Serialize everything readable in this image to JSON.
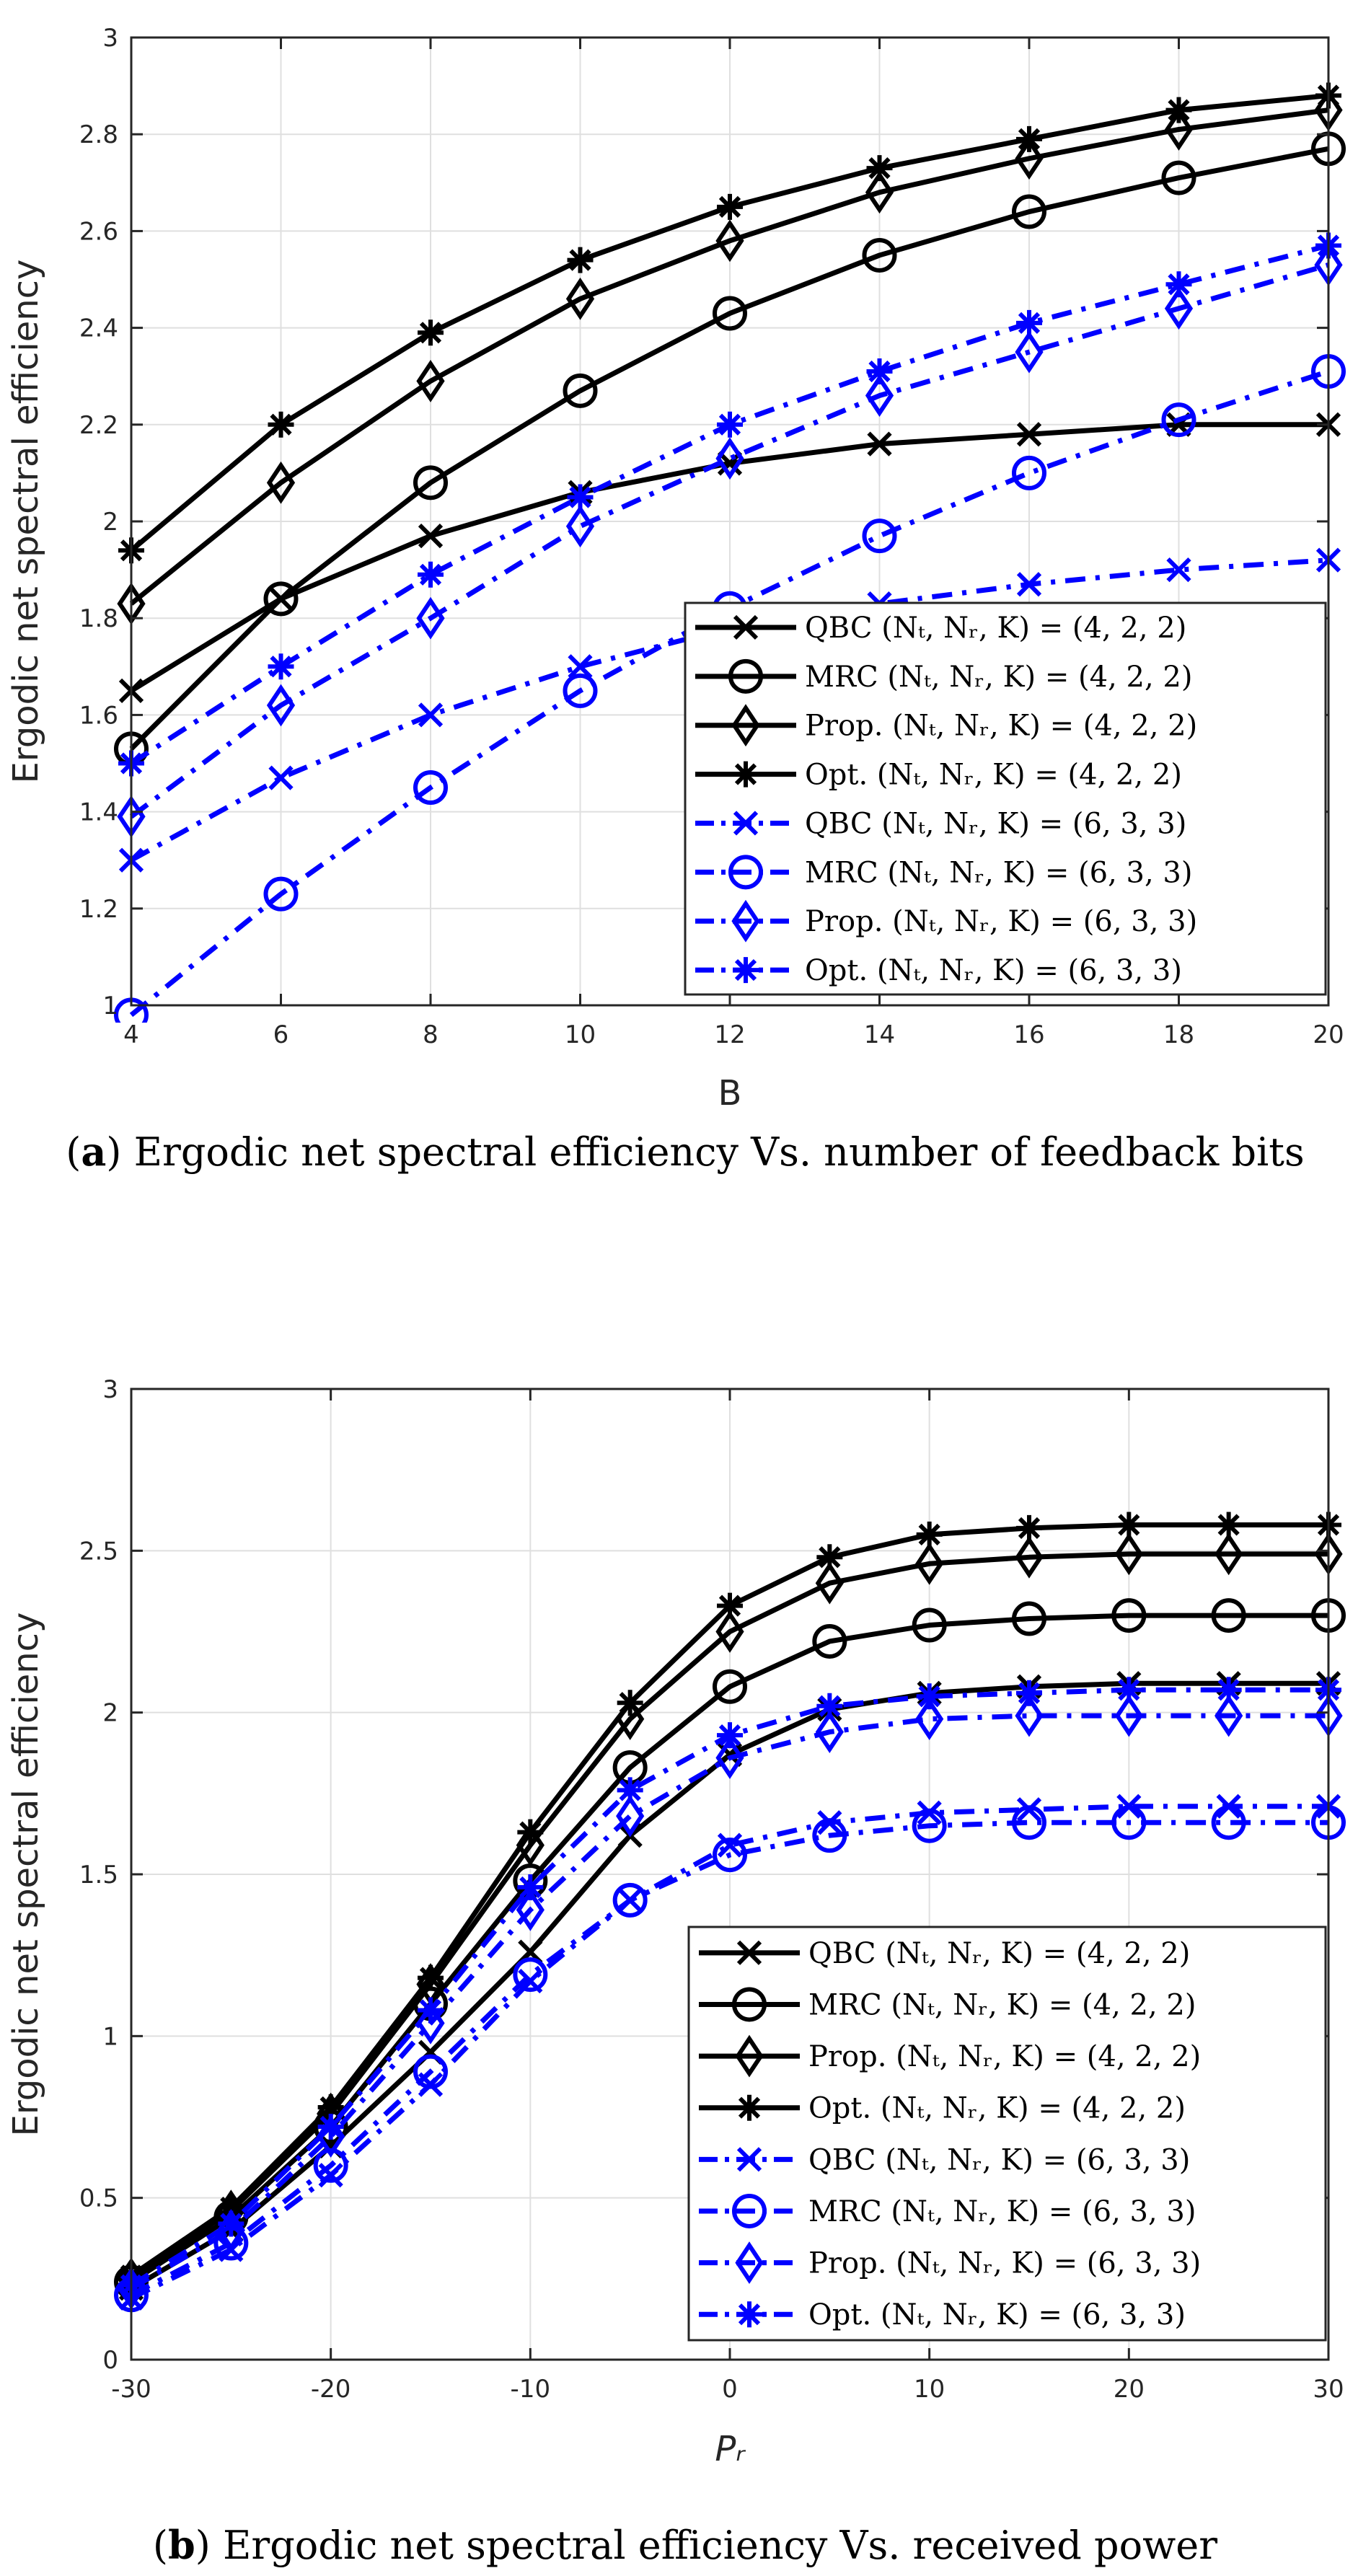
{
  "chart_data": [
    {
      "type": "line",
      "xlabel": "B",
      "ylabel": "Ergodic net spectral efficiency",
      "xlim": [
        4,
        20
      ],
      "ylim": [
        1,
        3
      ],
      "xticks": [
        4,
        6,
        8,
        10,
        12,
        14,
        16,
        18,
        20
      ],
      "yticks": [
        1,
        1.2,
        1.4,
        1.6,
        1.8,
        2,
        2.2,
        2.4,
        2.6,
        2.8,
        3
      ],
      "xtick_labels": [
        "4",
        "6",
        "8",
        "10",
        "12",
        "14",
        "16",
        "18",
        "20"
      ],
      "ytick_labels": [
        "1",
        "1.2",
        "1.4",
        "1.6",
        "1.8",
        "2",
        "2.2",
        "2.4",
        "2.6",
        "2.8",
        "3"
      ],
      "grid": true,
      "legend_position": "bottom-right",
      "x": [
        4,
        6,
        8,
        10,
        12,
        14,
        16,
        18,
        20
      ],
      "series": [
        {
          "name": "QBC (N_t, N_r, K) = (4, 2, 2)",
          "label_prefix": "QBC",
          "label_math": "(Nₜ, Nᵣ, K) = (4, 2, 2)",
          "color": "#000000",
          "dash": "solid",
          "marker": "x",
          "values": [
            1.65,
            1.84,
            1.97,
            2.06,
            2.12,
            2.16,
            2.18,
            2.2,
            2.2
          ]
        },
        {
          "name": "MRC (N_t, N_r, K) = (4, 2, 2)",
          "label_prefix": "MRC",
          "label_math": "(Nₜ, Nᵣ, K) = (4, 2, 2)",
          "color": "#000000",
          "dash": "solid",
          "marker": "o",
          "values": [
            1.53,
            1.84,
            2.08,
            2.27,
            2.43,
            2.55,
            2.64,
            2.71,
            2.77
          ]
        },
        {
          "name": "Prop. (N_t, N_r, K) = (4, 2, 2)",
          "label_prefix": "Prop.",
          "label_math": "(Nₜ, Nᵣ, K) = (4, 2, 2)",
          "color": "#000000",
          "dash": "solid",
          "marker": "d",
          "values": [
            1.83,
            2.08,
            2.29,
            2.46,
            2.58,
            2.68,
            2.75,
            2.81,
            2.85
          ]
        },
        {
          "name": "Opt. (N_t, N_r, K) = (4, 2, 2)",
          "label_prefix": "Opt.",
          "label_math": "(Nₜ, Nᵣ, K) = (4, 2, 2)",
          "color": "#000000",
          "dash": "solid",
          "marker": "*",
          "values": [
            1.94,
            2.2,
            2.39,
            2.54,
            2.65,
            2.73,
            2.79,
            2.85,
            2.88
          ]
        },
        {
          "name": "QBC (N_t, N_r, K) = (6, 3, 3)",
          "label_prefix": "QBC",
          "label_math": "(Nₜ, Nᵣ, K) = (6, 3, 3)",
          "color": "#0000ff",
          "dash": "dashdot",
          "marker": "x",
          "values": [
            1.3,
            1.47,
            1.6,
            1.7,
            1.78,
            1.83,
            1.87,
            1.9,
            1.92
          ]
        },
        {
          "name": "MRC (N_t, N_r, K) = (6, 3, 3)",
          "label_prefix": "MRC",
          "label_math": "(Nₜ, Nᵣ, K) = (6, 3, 3)",
          "color": "#0000ff",
          "dash": "dashdot",
          "marker": "o",
          "values": [
            0.98,
            1.23,
            1.45,
            1.65,
            1.82,
            1.97,
            2.1,
            2.21,
            2.31
          ]
        },
        {
          "name": "Prop. (N_t, N_r, K) = (6, 3, 3)",
          "label_prefix": "Prop.",
          "label_math": "(Nₜ, Nᵣ, K) = (6, 3, 3)",
          "color": "#0000ff",
          "dash": "dashdot",
          "marker": "d",
          "values": [
            1.39,
            1.62,
            1.8,
            1.99,
            2.13,
            2.26,
            2.35,
            2.44,
            2.53
          ]
        },
        {
          "name": "Opt. (N_t, N_r, K) = (6, 3, 3)",
          "label_prefix": "Opt.",
          "label_math": "(Nₜ, Nᵣ, K) = (6, 3, 3)",
          "color": "#0000ff",
          "dash": "dashdot",
          "marker": "*",
          "values": [
            1.5,
            1.7,
            1.89,
            2.05,
            2.2,
            2.31,
            2.41,
            2.49,
            2.57
          ]
        }
      ]
    },
    {
      "type": "line",
      "xlabel": "Pᵣ",
      "ylabel": "Ergodic net spectral efficiency",
      "xlim": [
        -30,
        30
      ],
      "ylim": [
        0,
        3
      ],
      "xticks": [
        -30,
        -20,
        -10,
        0,
        10,
        20,
        30
      ],
      "yticks": [
        0,
        0.5,
        1,
        1.5,
        2,
        2.5,
        3
      ],
      "xtick_labels": [
        "-30",
        "-20",
        "-10",
        "0",
        "10",
        "20",
        "30"
      ],
      "ytick_labels": [
        "0",
        "0.5",
        "1",
        "1.5",
        "2",
        "2.5",
        "3"
      ],
      "grid": true,
      "legend_position": "bottom-right",
      "x": [
        -30,
        -25,
        -20,
        -15,
        -10,
        -5,
        0,
        5,
        10,
        15,
        20,
        25,
        30
      ],
      "series": [
        {
          "name": "QBC (N_t, N_r, K) = (4, 2, 2)",
          "label_prefix": "QBC",
          "label_math": "(Nₜ, Nᵣ, K) = (4, 2, 2)",
          "color": "#000000",
          "dash": "solid",
          "marker": "x",
          "values": [
            0.22,
            0.4,
            0.66,
            0.95,
            1.26,
            1.62,
            1.87,
            2.01,
            2.06,
            2.08,
            2.09,
            2.09,
            2.09
          ]
        },
        {
          "name": "MRC (N_t, N_r, K) = (4, 2, 2)",
          "label_prefix": "MRC",
          "label_math": "(Nₜ, Nᵣ, K) = (4, 2, 2)",
          "color": "#000000",
          "dash": "solid",
          "marker": "o",
          "values": [
            0.24,
            0.44,
            0.72,
            1.1,
            1.48,
            1.83,
            2.08,
            2.22,
            2.27,
            2.29,
            2.3,
            2.3,
            2.3
          ]
        },
        {
          "name": "Prop. (N_t, N_r, K) = (4, 2, 2)",
          "label_prefix": "Prop.",
          "label_math": "(Nₜ, Nᵣ, K) = (4, 2, 2)",
          "color": "#000000",
          "dash": "solid",
          "marker": "d",
          "values": [
            0.25,
            0.46,
            0.76,
            1.16,
            1.59,
            1.98,
            2.25,
            2.4,
            2.46,
            2.48,
            2.49,
            2.49,
            2.49
          ]
        },
        {
          "name": "Opt. (N_t, N_r, K) = (4, 2, 2)",
          "label_prefix": "Opt.",
          "label_math": "(Nₜ, Nᵣ, K) = (4, 2, 2)",
          "color": "#000000",
          "dash": "solid",
          "marker": "*",
          "values": [
            0.26,
            0.47,
            0.78,
            1.18,
            1.63,
            2.03,
            2.33,
            2.48,
            2.55,
            2.57,
            2.58,
            2.58,
            2.58
          ]
        },
        {
          "name": "QBC (N_t, N_r, K) = (6, 3, 3)",
          "label_prefix": "QBC",
          "label_math": "(Nₜ, Nᵣ, K) = (6, 3, 3)",
          "color": "#0000ff",
          "dash": "dashdot",
          "marker": "x",
          "values": [
            0.19,
            0.34,
            0.57,
            0.85,
            1.17,
            1.42,
            1.59,
            1.66,
            1.69,
            1.7,
            1.71,
            1.71,
            1.71
          ]
        },
        {
          "name": "MRC (N_t, N_r, K) = (6, 3, 3)",
          "label_prefix": "MRC",
          "label_math": "(Nₜ, Nᵣ, K) = (6, 3, 3)",
          "color": "#0000ff",
          "dash": "dashdot",
          "marker": "o",
          "values": [
            0.2,
            0.36,
            0.6,
            0.89,
            1.19,
            1.42,
            1.56,
            1.62,
            1.65,
            1.66,
            1.66,
            1.66,
            1.66
          ]
        },
        {
          "name": "Prop. (N_t, N_r, K) = (6, 3, 3)",
          "label_prefix": "Prop.",
          "label_math": "(Nₜ, Nᵣ, K) = (6, 3, 3)",
          "color": "#0000ff",
          "dash": "dashdot",
          "marker": "d",
          "values": [
            0.22,
            0.4,
            0.69,
            1.04,
            1.39,
            1.68,
            1.86,
            1.94,
            1.98,
            1.99,
            1.99,
            1.99,
            1.99
          ]
        },
        {
          "name": "Opt. (N_t, N_r, K) = (6, 3, 3)",
          "label_prefix": "Opt.",
          "label_math": "(Nₜ, Nᵣ, K) = (6, 3, 3)",
          "color": "#0000ff",
          "dash": "dashdot",
          "marker": "*",
          "values": [
            0.23,
            0.42,
            0.72,
            1.08,
            1.46,
            1.76,
            1.93,
            2.02,
            2.05,
            2.06,
            2.07,
            2.07,
            2.07
          ]
        }
      ]
    }
  ],
  "captions": [
    {
      "label": "(a)",
      "label_letter": "a",
      "text": "Ergodic net spectral efficiency Vs. number of feedback bits"
    },
    {
      "label": "(b)",
      "label_letter": "b",
      "text": "Ergodic net spectral efficiency Vs. received power"
    }
  ]
}
